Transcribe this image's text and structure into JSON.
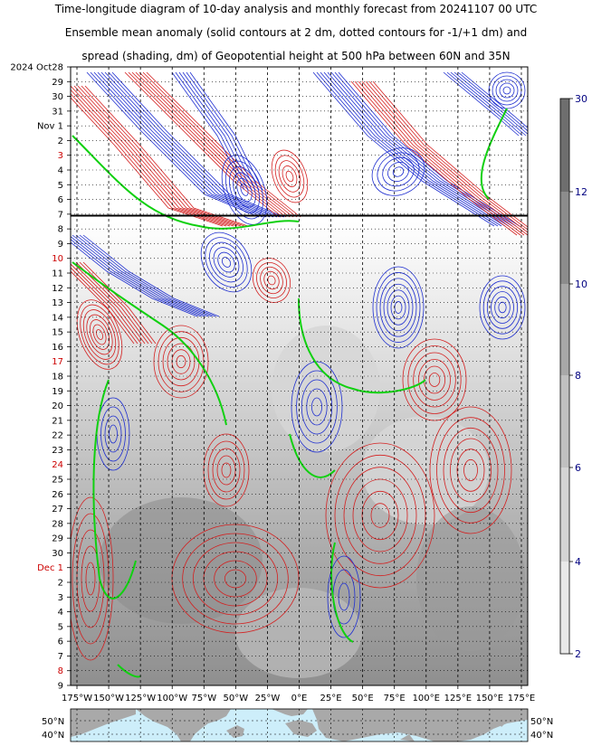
{
  "title_lines": [
    "Time-longitude diagram of 10-day analysis and monthly forecast from 20241107 00 UTC",
    "Ensemble mean anomaly (solid contours at 2 dm, dotted contours for -1/+1 dm) and",
    "spread (shading, dm) of Geopotential height at 500 hPa between 60N and 35N"
  ],
  "chart_data": {
    "type": "heatmap",
    "title": "Time-longitude diagram of 10-day analysis and monthly forecast from 20241107 00 UTC",
    "x_ticks": [
      "175°W",
      "150°W",
      "125°W",
      "100°W",
      "75°W",
      "50°W",
      "25°W",
      "0°E",
      "25°E",
      "50°E",
      "75°E",
      "100°E",
      "125°E",
      "150°E",
      "175°E"
    ],
    "x_values": [
      -175,
      -150,
      -125,
      -100,
      -75,
      -50,
      -25,
      0,
      25,
      50,
      75,
      100,
      125,
      150,
      175
    ],
    "xlim": [
      -180,
      180
    ],
    "y_ticks": [
      {
        "label": "2024 Oct28",
        "color": "#000000"
      },
      {
        "label": "29",
        "color": "#000000"
      },
      {
        "label": "30",
        "color": "#000000"
      },
      {
        "label": "31",
        "color": "#000000"
      },
      {
        "label": "Nov 1",
        "color": "#000000"
      },
      {
        "label": "2",
        "color": "#000000"
      },
      {
        "label": "3",
        "color": "#cc0000"
      },
      {
        "label": "4",
        "color": "#000000"
      },
      {
        "label": "5",
        "color": "#000000"
      },
      {
        "label": "6",
        "color": "#000000"
      },
      {
        "label": "7",
        "color": "#000000"
      },
      {
        "label": "8",
        "color": "#000000"
      },
      {
        "label": "9",
        "color": "#000000"
      },
      {
        "label": "10",
        "color": "#cc0000"
      },
      {
        "label": "11",
        "color": "#000000"
      },
      {
        "label": "12",
        "color": "#000000"
      },
      {
        "label": "13",
        "color": "#000000"
      },
      {
        "label": "14",
        "color": "#000000"
      },
      {
        "label": "15",
        "color": "#000000"
      },
      {
        "label": "16",
        "color": "#000000"
      },
      {
        "label": "17",
        "color": "#cc0000"
      },
      {
        "label": "18",
        "color": "#000000"
      },
      {
        "label": "19",
        "color": "#000000"
      },
      {
        "label": "20",
        "color": "#000000"
      },
      {
        "label": "21",
        "color": "#000000"
      },
      {
        "label": "22",
        "color": "#000000"
      },
      {
        "label": "23",
        "color": "#000000"
      },
      {
        "label": "24",
        "color": "#cc0000"
      },
      {
        "label": "25",
        "color": "#000000"
      },
      {
        "label": "26",
        "color": "#000000"
      },
      {
        "label": "27",
        "color": "#000000"
      },
      {
        "label": "28",
        "color": "#000000"
      },
      {
        "label": "29",
        "color": "#000000"
      },
      {
        "label": "30",
        "color": "#000000"
      },
      {
        "label": "Dec 1",
        "color": "#cc0000"
      },
      {
        "label": "2",
        "color": "#000000"
      },
      {
        "label": "3",
        "color": "#000000"
      },
      {
        "label": "4",
        "color": "#000000"
      },
      {
        "label": "5",
        "color": "#000000"
      },
      {
        "label": "6",
        "color": "#000000"
      },
      {
        "label": "7",
        "color": "#000000"
      },
      {
        "label": "8",
        "color": "#cc0000"
      },
      {
        "label": "9",
        "color": "#000000"
      }
    ],
    "analysis_end_index": 10,
    "grid": true,
    "colorbar": {
      "ticks": [
        "30",
        "12",
        "10",
        "8",
        "6",
        "4",
        "2"
      ],
      "tick_color": "#000080"
    },
    "map_strip": {
      "lat_labels": [
        "50°N",
        "40°N"
      ]
    },
    "colors": {
      "positive": "#d42020",
      "negative": "#1f2fd0",
      "zero": "#10d010"
    }
  }
}
